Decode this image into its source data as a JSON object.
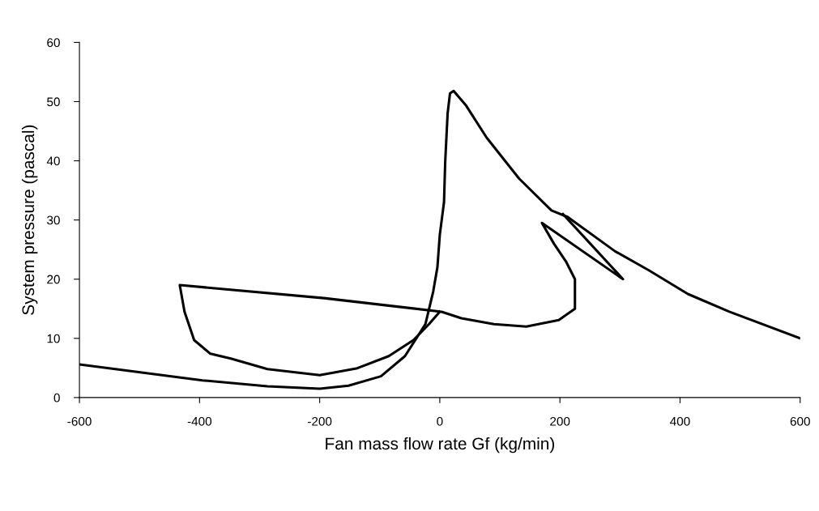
{
  "chart_data": {
    "type": "line",
    "xlabel": "Fan mass flow rate Gf (kg/min)",
    "ylabel": "System pressure (pascal)",
    "xlim": [
      -600,
      600
    ],
    "ylim": [
      0,
      60
    ],
    "xticks": [
      -600,
      -400,
      -200,
      0,
      200,
      400,
      600
    ],
    "yticks": [
      0,
      10,
      20,
      30,
      40,
      50,
      60
    ],
    "grid": false,
    "marker": "none",
    "line_style": "solid",
    "series": [
      {
        "color": "#000000",
        "x": [
          -600,
          -395,
          -287,
          -200,
          -152,
          -98,
          -58,
          -24,
          -11,
          -4,
          0,
          7,
          9,
          13,
          17,
          23,
          44,
          78,
          132,
          186,
          213,
          292,
          348,
          413,
          482,
          600
        ],
        "values": [
          5.6,
          2.9,
          1.9,
          1.5,
          2.0,
          3.6,
          7,
          12.4,
          17.9,
          22,
          27.5,
          33,
          39.8,
          48,
          51.4,
          51.8,
          49.3,
          43.9,
          37,
          31.6,
          30.5,
          24.7,
          21.5,
          17.5,
          14.5,
          10
        ]
      },
      {
        "color": "#000000",
        "x": [
          205,
          305,
          170,
          190,
          210,
          225,
          225,
          198,
          144,
          90,
          36,
          3,
          -193,
          -433,
          -425,
          -409,
          -382,
          -348,
          -287,
          -200,
          -139,
          -85,
          -44,
          -18,
          0
        ],
        "values": [
          31,
          20,
          29.5,
          26,
          23,
          20,
          15,
          13.1,
          12,
          12.4,
          13.4,
          14.5,
          16.8,
          19,
          14.5,
          9.7,
          7.4,
          6.6,
          4.8,
          3.8,
          4.9,
          7,
          9.7,
          12.4,
          14.5
        ]
      }
    ]
  }
}
